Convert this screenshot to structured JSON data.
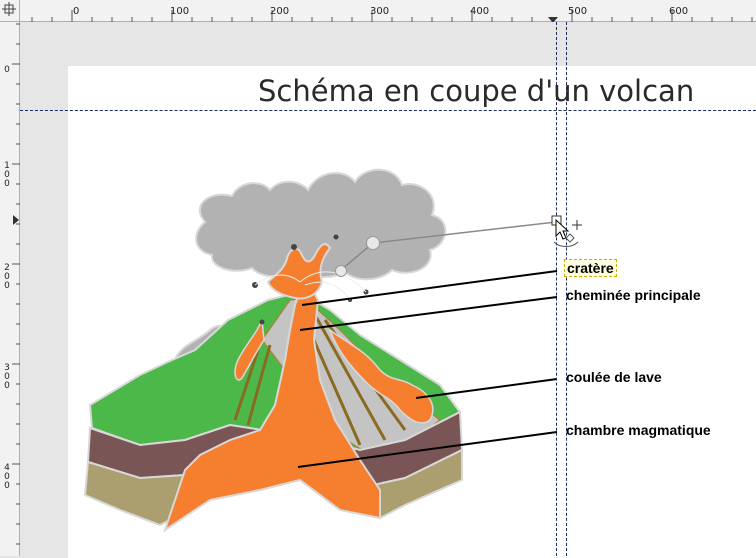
{
  "ruler": {
    "top_labels": [
      "0",
      "100",
      "200",
      "300",
      "400",
      "500",
      "600"
    ],
    "left_labels": [
      "0",
      "100",
      "200",
      "300",
      "400"
    ]
  },
  "document": {
    "title": "Schéma en coupe d'un volcan"
  },
  "labels": {
    "cratere": "cratère",
    "cheminee": "cheminée principale",
    "coulee": "coulée de lave",
    "chambre": "chambre magmatique"
  },
  "colors": {
    "smoke": "#b2b2b2",
    "lava": "#f57f2e",
    "grass": "#4db84a",
    "soil_dark": "#7a5555",
    "soil_light": "#ab9f70",
    "guide": "#1a2a66"
  }
}
